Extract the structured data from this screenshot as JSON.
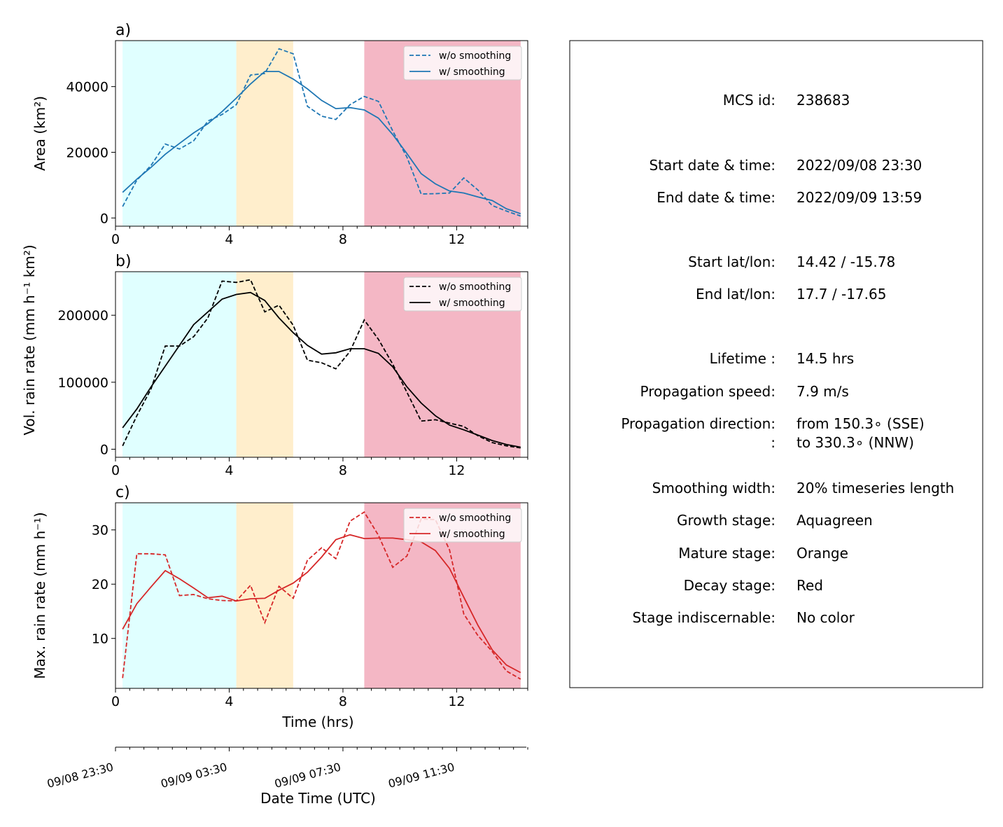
{
  "colors": {
    "growth": "#e0ffff",
    "mature": "#ffeecc",
    "decay": "#f4b7c5",
    "area": "#1f77b4",
    "vol": "#000000",
    "max": "#d62728"
  },
  "chart_data": [
    {
      "type": "line",
      "panel_label": "a)",
      "xlabel": "",
      "ylabel": "Area  (km²)",
      "xlim": [
        0,
        14.5
      ],
      "ylim": [
        -2500,
        54000
      ],
      "xticks": [
        "0",
        "4",
        "8",
        "12"
      ],
      "yticks": [
        "0",
        "20000",
        "40000"
      ],
      "x": [
        0.25,
        0.75,
        1.25,
        1.75,
        2.25,
        2.75,
        3.25,
        3.75,
        4.25,
        4.75,
        5.25,
        5.75,
        6.25,
        6.75,
        7.25,
        7.75,
        8.25,
        8.75,
        9.25,
        9.75,
        10.25,
        10.75,
        11.25,
        11.75,
        12.25,
        12.75,
        13.25,
        13.75,
        14.25
      ],
      "series": [
        {
          "name": "w/o smoothing",
          "style": "dashed",
          "values": [
            3500,
            11500,
            16000,
            22500,
            21000,
            23500,
            29500,
            31500,
            34500,
            43500,
            44000,
            51500,
            50000,
            34000,
            31000,
            30000,
            34500,
            37000,
            35500,
            26500,
            18500,
            7300,
            7400,
            7600,
            12200,
            8500,
            3800,
            2100,
            600
          ]
        },
        {
          "name": "w/ smoothing",
          "style": "solid",
          "values": [
            7800,
            11800,
            15400,
            19400,
            22700,
            25900,
            28700,
            32400,
            36500,
            40800,
            44600,
            44600,
            42300,
            39300,
            35800,
            33300,
            33600,
            32900,
            30400,
            25400,
            19600,
            13500,
            10400,
            8200,
            7600,
            6400,
            5300,
            2800,
            1300
          ]
        }
      ]
    },
    {
      "type": "line",
      "panel_label": "b)",
      "xlabel": "",
      "ylabel": "Vol. rain rate (mm h⁻¹ km²)",
      "xlim": [
        0,
        14.5
      ],
      "ylim": [
        -12000,
        265000
      ],
      "xticks": [
        "0",
        "4",
        "8",
        "12"
      ],
      "yticks": [
        "0",
        "100000",
        "200000"
      ],
      "x": [
        0.25,
        0.75,
        1.25,
        1.75,
        2.25,
        2.75,
        3.25,
        3.75,
        4.25,
        4.75,
        5.25,
        5.75,
        6.25,
        6.75,
        7.25,
        7.75,
        8.25,
        8.75,
        9.25,
        9.75,
        10.25,
        10.75,
        11.25,
        11.75,
        12.25,
        12.75,
        13.25,
        13.75,
        14.25
      ],
      "series": [
        {
          "name": "w/o smoothing",
          "style": "dashed",
          "values": [
            5000,
            50000,
            90000,
            154000,
            154000,
            168000,
            196000,
            251000,
            249000,
            253000,
            205000,
            215000,
            185000,
            133000,
            129000,
            120000,
            146000,
            193000,
            164000,
            127000,
            85000,
            42000,
            44000,
            39000,
            34000,
            20000,
            10000,
            5000,
            2000
          ]
        },
        {
          "name": "w/ smoothing",
          "style": "solid",
          "values": [
            32000,
            60000,
            93000,
            124000,
            155000,
            186000,
            205000,
            224000,
            231000,
            234000,
            222000,
            196000,
            174000,
            155000,
            142000,
            144000,
            150000,
            150000,
            143000,
            123000,
            93000,
            69000,
            50000,
            36000,
            29000,
            21000,
            13000,
            7000,
            3000
          ]
        }
      ]
    },
    {
      "type": "line",
      "panel_label": "c)",
      "xlabel": "Time (hrs)",
      "ylabel": "Max. rain rate  (mm h⁻¹)",
      "xlim": [
        0,
        14.5
      ],
      "ylim": [
        0.8,
        35
      ]
    },
    {
      "type": "line",
      "panel_label": "c)",
      "xlabel": "Time (hrs)",
      "ylabel": "Max. rain rate  (mm h⁻¹)",
      "xlim": [
        0,
        14.5
      ],
      "ylim": [
        0.8,
        35
      ],
      "xticks": [
        "0",
        "4",
        "8",
        "12"
      ],
      "yticks": [
        "10",
        "20",
        "30"
      ],
      "x": [
        0.25,
        0.75,
        1.25,
        1.75,
        2.25,
        2.75,
        3.25,
        3.75,
        4.25,
        4.75,
        5.25,
        5.75,
        6.25,
        6.75,
        7.25,
        7.75,
        8.25,
        8.75,
        9.25,
        9.75,
        10.25,
        10.75,
        11.25,
        11.75,
        12.25,
        12.75,
        13.25,
        13.75,
        14.25
      ],
      "series": [
        {
          "name": "w/o smoothing",
          "style": "dashed",
          "values": [
            2.7,
            25.6,
            25.6,
            25.4,
            17.9,
            18.1,
            17.3,
            17.0,
            16.9,
            19.8,
            12.9,
            19.6,
            17.4,
            24.4,
            26.7,
            24.7,
            31.6,
            33.3,
            29.0,
            23.1,
            25.2,
            32.0,
            31.9,
            26.3,
            14.5,
            10.5,
            7.6,
            4.0,
            2.5
          ]
        },
        {
          "name": "w/ smoothing",
          "style": "solid",
          "values": [
            11.7,
            16.4,
            19.5,
            22.5,
            21.0,
            19.3,
            17.5,
            17.8,
            16.9,
            17.3,
            17.4,
            18.9,
            20.2,
            22.2,
            25.0,
            28.2,
            29.1,
            28.4,
            28.5,
            28.5,
            28.2,
            27.8,
            26.2,
            22.9,
            17.6,
            12.4,
            7.9,
            5.1,
            3.7
          ]
        }
      ]
    }
  ],
  "stages": [
    {
      "name": "Aquagreen",
      "start": 0.25,
      "end": 4.25,
      "color_key": "growth"
    },
    {
      "name": "Orange",
      "start": 4.25,
      "end": 6.25,
      "color_key": "mature"
    },
    {
      "name": "Red",
      "start": 8.75,
      "end": 14.25,
      "color_key": "decay"
    }
  ],
  "datetime_axis": {
    "label": "Date Time (UTC)",
    "ticks": [
      "09/08 23:30",
      "09/09 03:30",
      "09/09 07:30",
      "09/09 11:30"
    ]
  },
  "info": {
    "rows": [
      {
        "label": "MCS id:",
        "value": "238683"
      },
      {
        "label": "Start date & time:",
        "value": "2022/09/08 23:30"
      },
      {
        "label": "End date & time:",
        "value": "2022/09/09 13:59"
      },
      {
        "label": "Start lat/lon:",
        "value": "14.42 / -15.78"
      },
      {
        "label": "End lat/lon:",
        "value": "17.7 / -17.65"
      },
      {
        "label": "Lifetime :",
        "value": "14.5 hrs"
      },
      {
        "label": "Propagation speed:",
        "value": "7.9 m/s"
      },
      {
        "label": "Propagation direction:",
        "value": "from 150.3∘ (SSE)"
      },
      {
        "label": ":",
        "value": "to   330.3∘ (NNW)"
      },
      {
        "label": "Smoothing width:",
        "value": "20% timeseries length"
      },
      {
        "label": "Growth stage:",
        "value": "Aquagreen"
      },
      {
        "label": "Mature stage:",
        "value": "Orange"
      },
      {
        "label": "Decay stage:",
        "value": "Red"
      },
      {
        "label": "Stage indiscernable:",
        "value": "No color"
      }
    ]
  }
}
